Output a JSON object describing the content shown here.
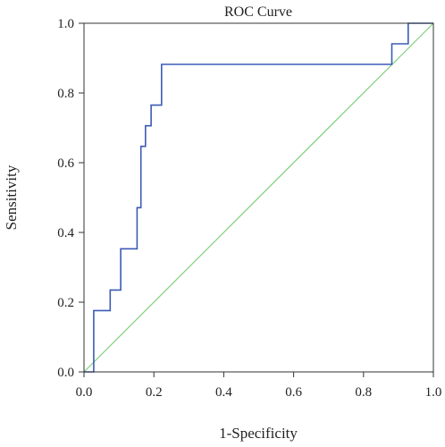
{
  "chart_data": {
    "type": "line",
    "title": "ROC Curve",
    "xlabel": "1-Specificity",
    "ylabel": "Sensitivity",
    "xlim": [
      0.0,
      1.0
    ],
    "ylim": [
      0.0,
      1.0
    ],
    "xticks": [
      "0.0",
      "0.2",
      "0.4",
      "0.6",
      "0.8",
      "1.0"
    ],
    "yticks": [
      "0.0",
      "0.2",
      "0.4",
      "0.6",
      "0.8",
      "1.0"
    ],
    "grid": false,
    "series": [
      {
        "color": "#3b5bb5",
        "x": [
          0.0,
          0.028,
          0.028,
          0.075,
          0.075,
          0.105,
          0.105,
          0.152,
          0.152,
          0.163,
          0.163,
          0.176,
          0.176,
          0.192,
          0.192,
          0.222,
          0.222,
          0.881,
          0.881,
          0.928,
          0.928,
          1.0
        ],
        "y": [
          0.0,
          0.0,
          0.176,
          0.176,
          0.235,
          0.235,
          0.353,
          0.353,
          0.471,
          0.471,
          0.647,
          0.647,
          0.706,
          0.706,
          0.765,
          0.765,
          0.882,
          0.882,
          0.941,
          0.941,
          1.0,
          1.0
        ]
      },
      {
        "color": "#7ccf7c",
        "x": [
          0.0,
          1.0
        ],
        "y": [
          0.0,
          1.0
        ]
      }
    ]
  }
}
